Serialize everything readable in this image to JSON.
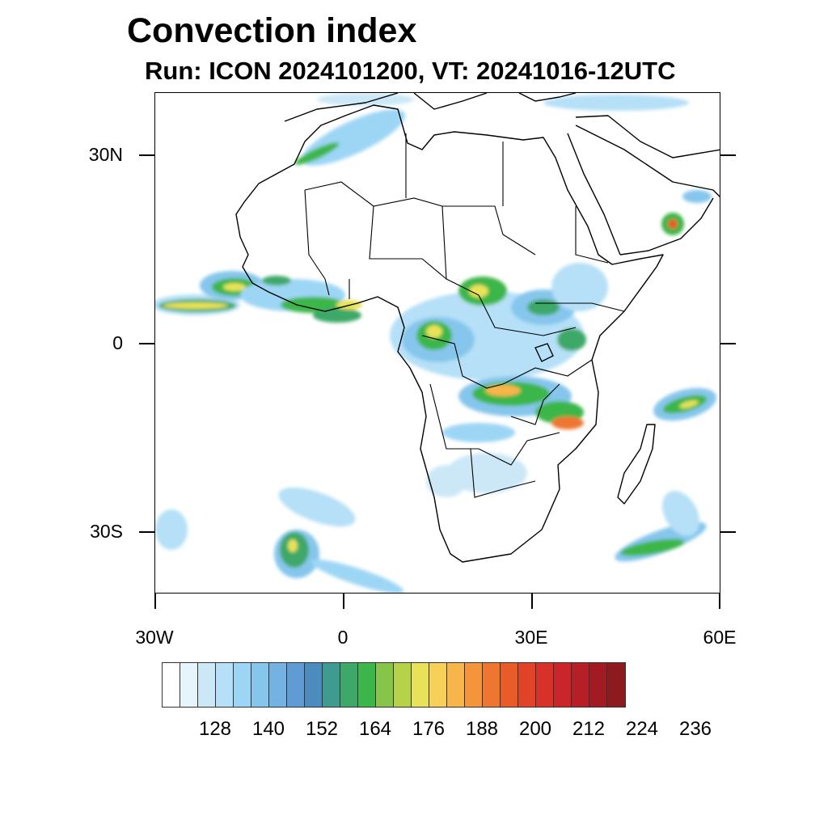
{
  "title": "Convection index",
  "subtitle": "Run: ICON 2024101200,  VT: 20241016-12UTC",
  "map": {
    "lat_labels": [
      "30N",
      "0",
      "30S"
    ],
    "lon_labels": [
      "30W",
      "0",
      "30E",
      "60E"
    ]
  },
  "colorbar": {
    "colors": [
      "#ffffff",
      "#e6f4fc",
      "#cce8f7",
      "#b5e0f7",
      "#9dd6f5",
      "#86c6ec",
      "#73b2e3",
      "#5f9bd5",
      "#4b8bbd",
      "#3f9b8f",
      "#3ea868",
      "#3cb64a",
      "#86c54a",
      "#b6d248",
      "#e8e25a",
      "#f7d058",
      "#f8b54a",
      "#f5953b",
      "#ef7630",
      "#e85c29",
      "#e04328",
      "#d7322a",
      "#c9252b",
      "#b61f26",
      "#a21b22",
      "#8c1a1e"
    ],
    "tick_labels": [
      "128",
      "140",
      "152",
      "164",
      "176",
      "188",
      "200",
      "212",
      "224",
      "236"
    ]
  }
}
